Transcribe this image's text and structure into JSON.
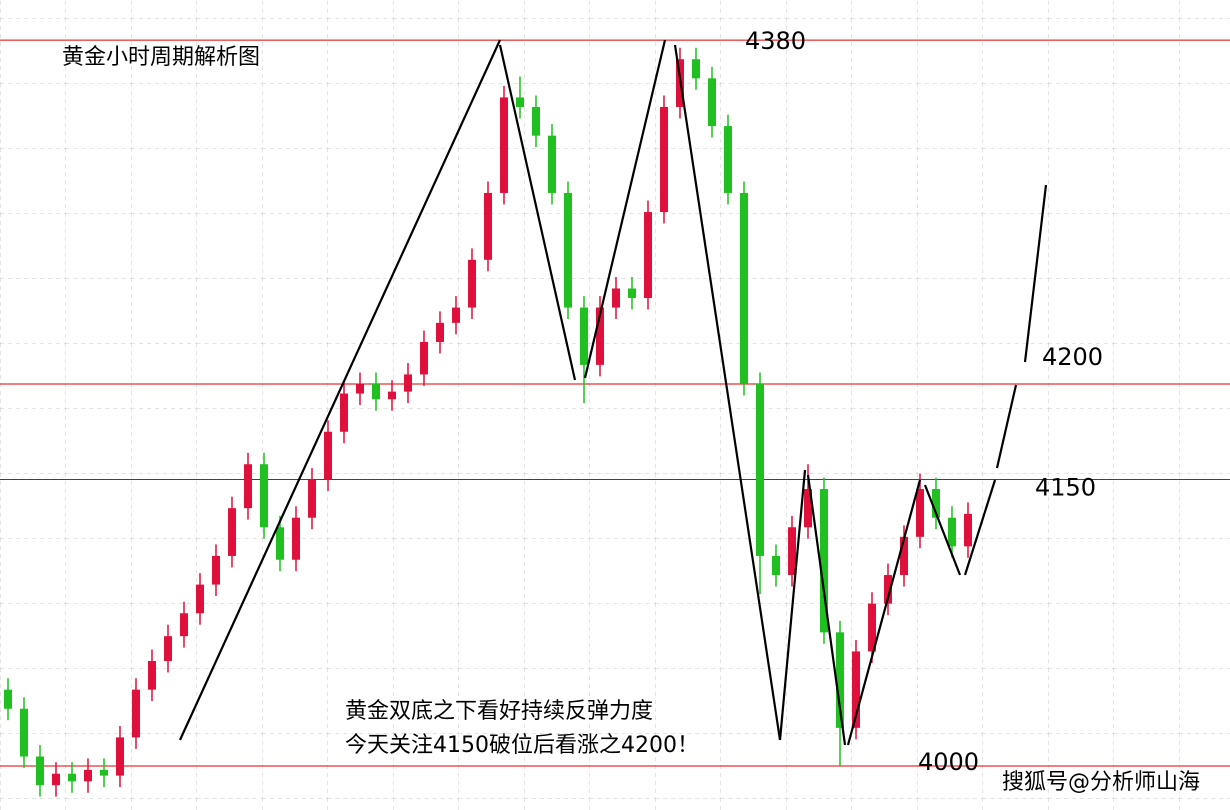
{
  "chart_data": {
    "type": "candlestick",
    "title": "黄金小时周期解析图",
    "ylim": [
      3977,
      4401
    ],
    "levels": [
      4380,
      4200,
      4150,
      4000
    ],
    "level_color": "#e00000",
    "up_color": "#e0103c",
    "down_color": "#1fc01f",
    "annotations": [
      "黄金双底之下看好持续反弹力度",
      "今天关注4150破位后看涨之4200！"
    ],
    "watermark": "搜狐号@分析师山海",
    "open": [
      4040,
      4030,
      4005,
      3990,
      3996,
      3992,
      3998,
      3995,
      4015,
      4040,
      4055,
      4068,
      4080,
      4095,
      4110,
      4135,
      4158,
      4125,
      4108,
      4130,
      4150,
      4175,
      4195,
      4200,
      4192,
      4196,
      4205,
      4222,
      4232,
      4240,
      4265,
      4300,
      4350,
      4345,
      4330,
      4300,
      4240,
      4210,
      4240,
      4250,
      4245,
      4290,
      4345,
      4370,
      4360,
      4335,
      4300,
      4200,
      4110,
      4100,
      4125,
      4145,
      4070,
      4020,
      4060,
      4085,
      4100,
      4120,
      4145,
      4130,
      4115
    ],
    "high": [
      4046,
      4036,
      4011,
      4002,
      4002,
      4004,
      4004,
      4021,
      4046,
      4061,
      4074,
      4086,
      4101,
      4116,
      4141,
      4164,
      4164,
      4131,
      4136,
      4156,
      4181,
      4201,
      4206,
      4206,
      4202,
      4211,
      4228,
      4238,
      4246,
      4271,
      4306,
      4356,
      4361,
      4351,
      4336,
      4306,
      4246,
      4246,
      4256,
      4256,
      4296,
      4351,
      4376,
      4376,
      4366,
      4341,
      4306,
      4206,
      4116,
      4131,
      4158,
      4151,
      4076,
      4066,
      4091,
      4106,
      4126,
      4153,
      4151,
      4136,
      4138
    ],
    "low": [
      4024,
      3999,
      3984,
      3984,
      3986,
      3986,
      3989,
      3989,
      4009,
      4034,
      4049,
      4062,
      4074,
      4089,
      4104,
      4129,
      4119,
      4102,
      4102,
      4124,
      4144,
      4169,
      4189,
      4186,
      4186,
      4190,
      4199,
      4216,
      4226,
      4234,
      4259,
      4294,
      4339,
      4324,
      4294,
      4234,
      4190,
      4204,
      4234,
      4239,
      4239,
      4284,
      4339,
      4354,
      4329,
      4294,
      4194,
      4090,
      4094,
      4094,
      4119,
      4064,
      4000,
      4014,
      4054,
      4079,
      4094,
      4114,
      4124,
      4109,
      4109
    ],
    "close": [
      4030,
      4005,
      3990,
      3996,
      3992,
      3998,
      3995,
      4015,
      4040,
      4055,
      4068,
      4080,
      4095,
      4110,
      4135,
      4158,
      4125,
      4108,
      4130,
      4150,
      4175,
      4195,
      4200,
      4192,
      4196,
      4205,
      4222,
      4232,
      4240,
      4265,
      4300,
      4350,
      4345,
      4330,
      4300,
      4240,
      4210,
      4240,
      4250,
      4245,
      4290,
      4345,
      4370,
      4360,
      4335,
      4300,
      4200,
      4110,
      4100,
      4125,
      4145,
      4070,
      4020,
      4060,
      4085,
      4100,
      4120,
      4145,
      4130,
      4115,
      4132
    ]
  }
}
